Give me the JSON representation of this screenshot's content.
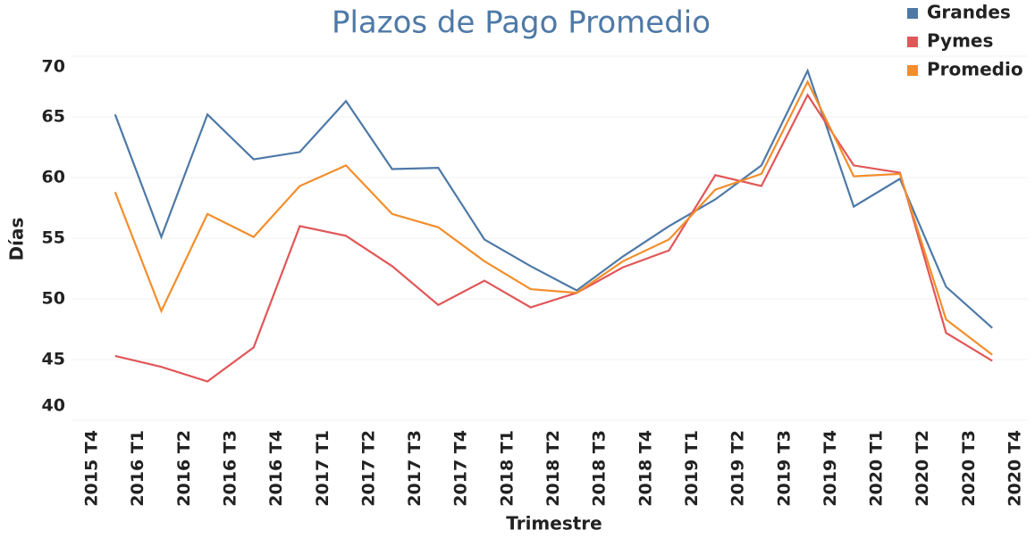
{
  "chart_data": {
    "type": "line",
    "title": "Plazos de Pago Promedio",
    "x_label": "Trimestre",
    "y_label": "Días",
    "categories": [
      "2015 T4",
      "2016 T1",
      "2016 T2",
      "2016 T3",
      "2016 T4",
      "2017 T1",
      "2017 T2",
      "2017 T3",
      "2017 T4",
      "2018 T1",
      "2018 T2",
      "2018 T3",
      "2018 T4",
      "2019 T1",
      "2019 T2",
      "2019 T3",
      "2019 T4",
      "2020 T1",
      "2020 T2",
      "2020 T3",
      "2020 T4"
    ],
    "series": [
      {
        "name": "Grandes",
        "color": "#4e79a7",
        "values": [
          65.2,
          55.1,
          65.2,
          61.5,
          62.1,
          66.3,
          60.7,
          60.8,
          54.9,
          52.7,
          50.7,
          53.5,
          56.0,
          58.2,
          61.0,
          68.8,
          57.6,
          59.9,
          51.0,
          47.6,
          null
        ]
      },
      {
        "name": "Pymes",
        "color": "#e15759",
        "values": [
          45.3,
          44.4,
          43.2,
          46.0,
          56.0,
          55.2,
          52.7,
          49.5,
          51.5,
          49.3,
          50.5,
          52.6,
          54.0,
          60.2,
          59.3,
          66.8,
          61.0,
          60.4,
          47.2,
          44.9,
          null
        ]
      },
      {
        "name": "Promedio",
        "color": "#f28e2b",
        "values": [
          58.8,
          49.0,
          57.0,
          55.1,
          59.3,
          61.0,
          57.0,
          55.9,
          53.1,
          50.8,
          50.5,
          53.1,
          54.9,
          59.0,
          60.3,
          67.9,
          60.1,
          60.3,
          48.3,
          45.4,
          null
        ]
      }
    ],
    "ylim": [
      40,
      70
    ],
    "yticks": [
      40,
      45,
      50,
      55,
      60,
      65,
      70
    ],
    "grid": true,
    "legend": "top-right"
  }
}
